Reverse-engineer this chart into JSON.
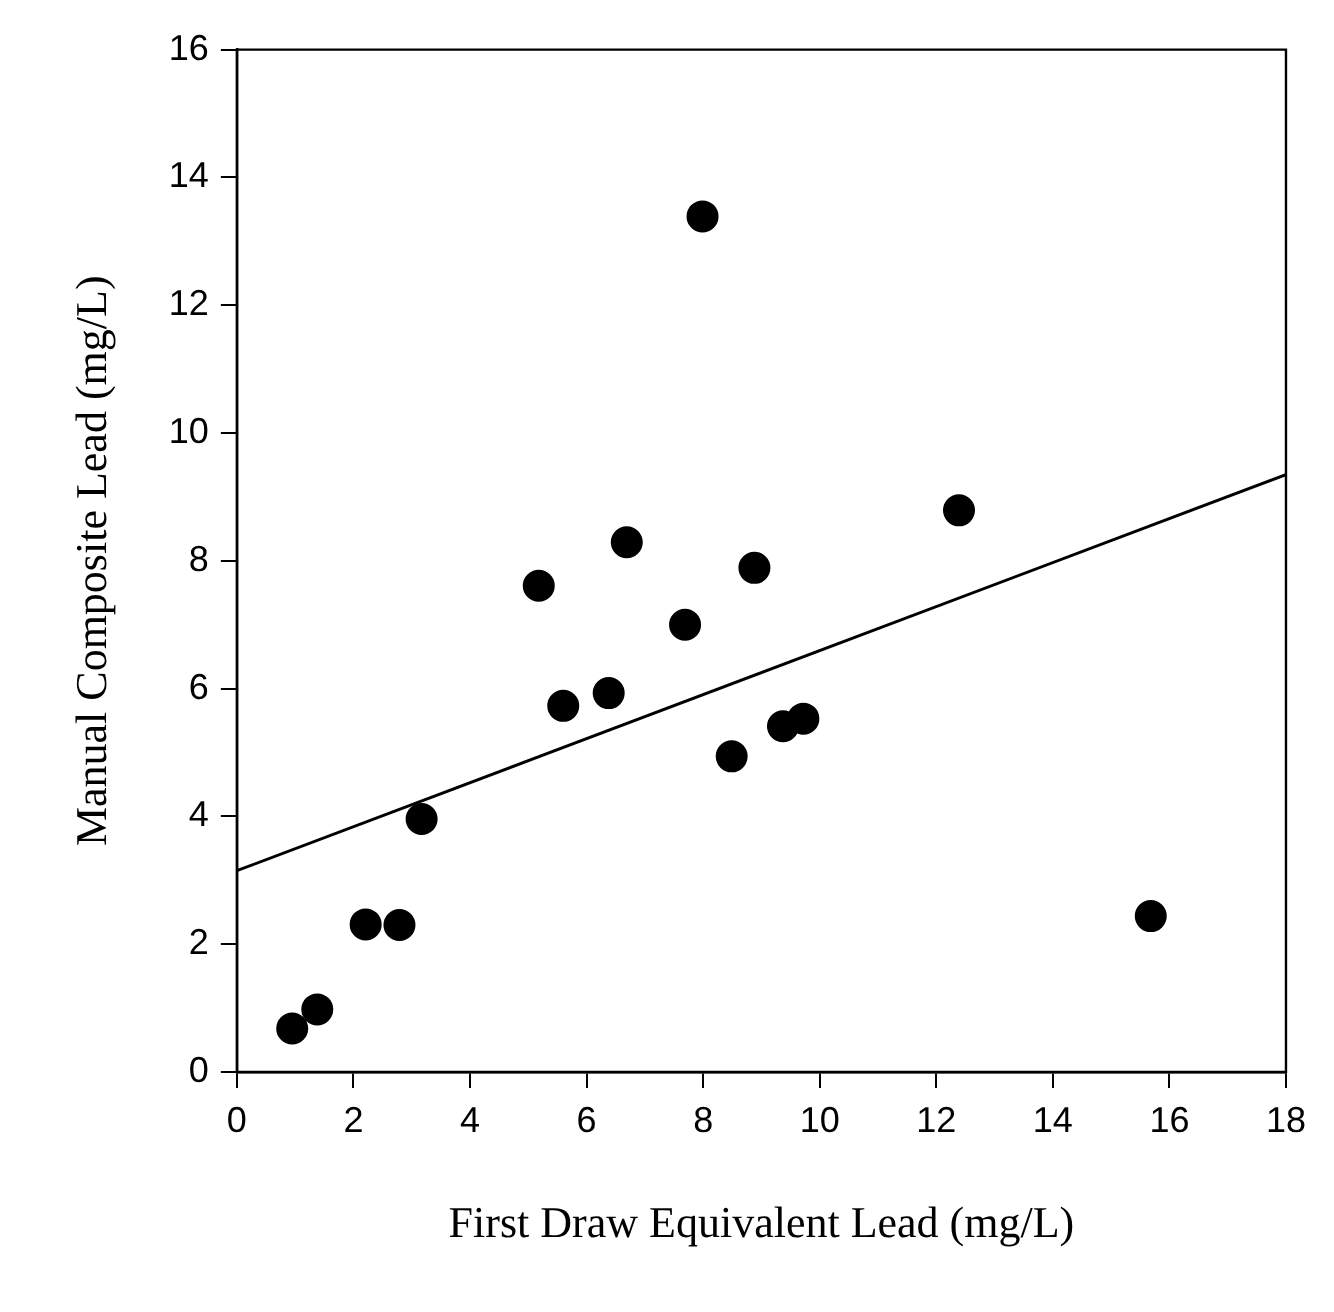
{
  "chart_data": {
    "type": "scatter",
    "xlabel": "First Draw Equivalent Lead (mg/L)",
    "ylabel": "Manual Composite Lead (mg/L)",
    "xlim": [
      0,
      18
    ],
    "ylim": [
      0,
      16
    ],
    "xticks": [
      0,
      2,
      4,
      6,
      8,
      10,
      12,
      14,
      16,
      18
    ],
    "yticks": [
      0,
      2,
      4,
      6,
      8,
      10,
      12,
      14,
      16
    ],
    "grid": false,
    "legend": false,
    "marker": "circle",
    "series": [
      {
        "color": "#000000",
        "x": [
          0.95,
          1.38,
          2.21,
          2.79,
          3.17,
          5.18,
          5.6,
          6.38,
          6.69,
          7.69,
          7.99,
          8.49,
          8.88,
          9.37,
          9.72,
          12.39,
          15.68
        ],
        "values": [
          0.68,
          0.98,
          2.31,
          2.3,
          3.96,
          7.61,
          5.73,
          5.93,
          8.29,
          7.0,
          13.39,
          4.94,
          7.89,
          5.41,
          5.53,
          8.79,
          2.44
        ]
      },
      {
        "type": "line",
        "color": "#000000",
        "marker": "none",
        "line_style": "solid",
        "x": [
          0,
          18
        ],
        "values": [
          3.15,
          9.35
        ]
      }
    ]
  }
}
